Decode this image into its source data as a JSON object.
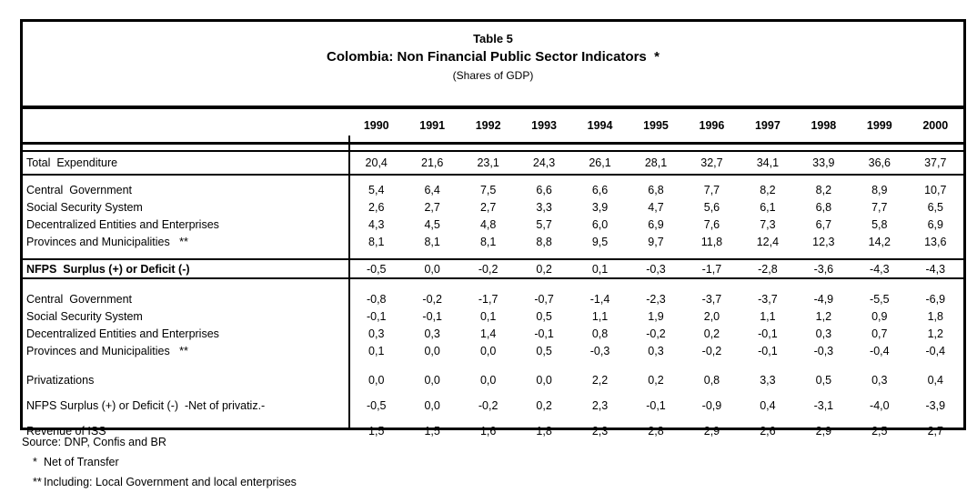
{
  "table": {
    "table_number": "Table 5",
    "title": "Colombia: Non Financial Public Sector Indicators  *",
    "subtitle": "(Shares of GDP)",
    "columns": [
      "1990",
      "1991",
      "1992",
      "1993",
      "1994",
      "1995",
      "1996",
      "1997",
      "1998",
      "1999",
      "2000"
    ],
    "rows": [
      {
        "kind": "total",
        "label": "Total  Expenditure",
        "values": [
          "20,4",
          "21,6",
          "23,1",
          "24,3",
          "26,1",
          "28,1",
          "32,7",
          "34,1",
          "33,9",
          "36,6",
          "37,7"
        ]
      },
      {
        "kind": "sub",
        "label": "Central  Government",
        "values": [
          "5,4",
          "6,4",
          "7,5",
          "6,6",
          "6,6",
          "6,8",
          "7,7",
          "8,2",
          "8,2",
          "8,9",
          "10,7"
        ]
      },
      {
        "kind": "sub",
        "label": "Social Security System",
        "values": [
          "2,6",
          "2,7",
          "2,7",
          "3,3",
          "3,9",
          "4,7",
          "5,6",
          "6,1",
          "6,8",
          "7,7",
          "6,5"
        ]
      },
      {
        "kind": "sub",
        "label": "Decentralized Entities and Enterprises",
        "values": [
          "4,3",
          "4,5",
          "4,8",
          "5,7",
          "6,0",
          "6,9",
          "7,6",
          "7,3",
          "6,7",
          "5,8",
          "6,9"
        ]
      },
      {
        "kind": "sub",
        "label": "Provinces and Municipalities   **",
        "values": [
          "8,1",
          "8,1",
          "8,1",
          "8,8",
          "9,5",
          "9,7",
          "11,8",
          "12,4",
          "12,3",
          "14,2",
          "13,6"
        ]
      },
      {
        "kind": "nfps",
        "label": "NFPS  Surplus (+) or Deficit (-)",
        "values": [
          "-0,5",
          "0,0",
          "-0,2",
          "0,2",
          "0,1",
          "-0,3",
          "-1,7",
          "-2,8",
          "-3,6",
          "-4,3",
          "-4,3"
        ]
      },
      {
        "kind": "sub",
        "label": "Central  Government",
        "values": [
          "-0,8",
          "-0,2",
          "-1,7",
          "-0,7",
          "-1,4",
          "-2,3",
          "-3,7",
          "-3,7",
          "-4,9",
          "-5,5",
          "-6,9"
        ]
      },
      {
        "kind": "sub",
        "label": "Social Security System",
        "values": [
          "-0,1",
          "-0,1",
          "0,1",
          "0,5",
          "1,1",
          "1,9",
          "2,0",
          "1,1",
          "1,2",
          "0,9",
          "1,8"
        ]
      },
      {
        "kind": "sub",
        "label": "Decentralized Entities and Enterprises",
        "values": [
          "0,3",
          "0,3",
          "1,4",
          "-0,1",
          "0,8",
          "-0,2",
          "0,2",
          "-0,1",
          "0,3",
          "0,7",
          "1,2"
        ]
      },
      {
        "kind": "sub",
        "label": "Provinces and Municipalities   **",
        "values": [
          "0,1",
          "0,0",
          "0,0",
          "0,5",
          "-0,3",
          "0,3",
          "-0,2",
          "-0,1",
          "-0,3",
          "-0,4",
          "-0,4"
        ]
      },
      {
        "kind": "memo",
        "label": "Privatizations",
        "values": [
          "0,0",
          "0,0",
          "0,0",
          "0,0",
          "2,2",
          "0,2",
          "0,8",
          "3,3",
          "0,5",
          "0,3",
          "0,4"
        ]
      },
      {
        "kind": "memo",
        "label": "NFPS Surplus (+) or Deficit (-)  -Net of privatiz.-",
        "values": [
          "-0,5",
          "0,0",
          "-0,2",
          "0,2",
          "2,3",
          "-0,1",
          "-0,9",
          "0,4",
          "-3,1",
          "-4,0",
          "-3,9"
        ]
      },
      {
        "kind": "memo",
        "label": "Revenue of ISS",
        "values": [
          "1,5",
          "1,5",
          "1,6",
          "1,8",
          "2,3",
          "2,8",
          "2,9",
          "2,6",
          "2,9",
          "2,5",
          "2,7"
        ]
      }
    ]
  },
  "footer": {
    "source": "Source: DNP, Confis and BR",
    "notes": [
      {
        "marker": "*",
        "text": "Net of Transfer"
      },
      {
        "marker": "**",
        "text": "Including: Local Government and local enterprises"
      }
    ]
  }
}
